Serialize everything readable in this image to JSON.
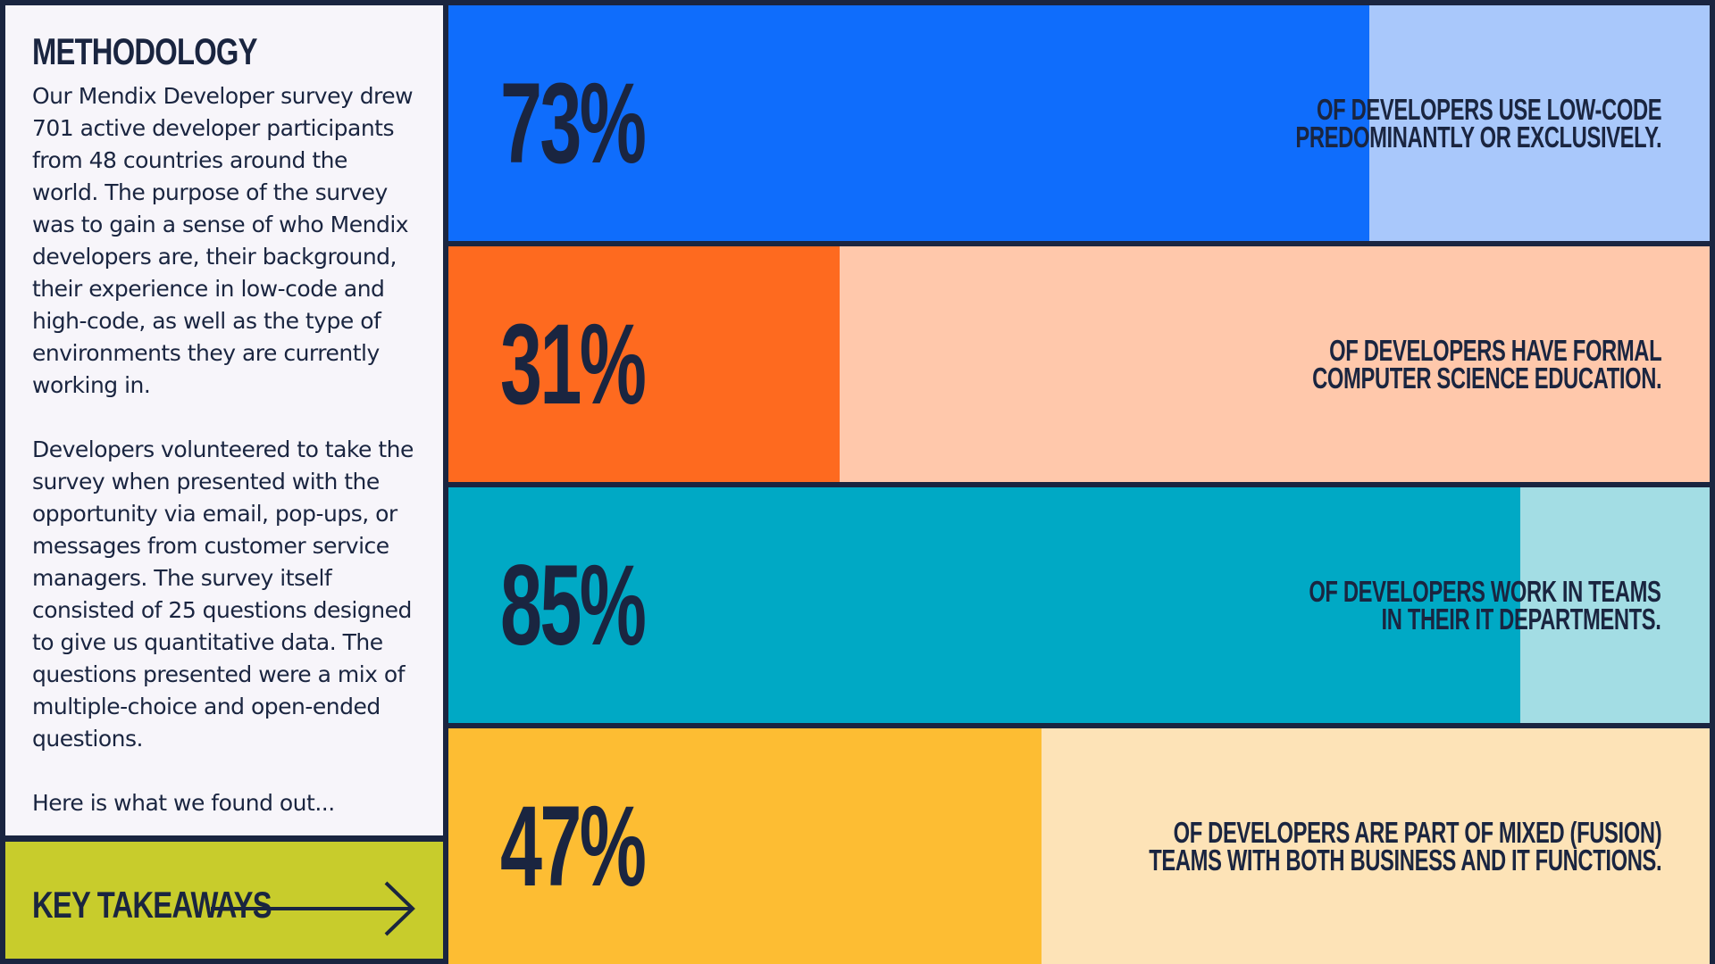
{
  "methodology": {
    "title": "METHODOLOGY",
    "paragraphs": [
      "Our Mendix Developer survey drew 701 active developer participants from 48 countries around the world. The purpose of the survey was to gain a sense of who Mendix developers are, their background, their experience in low-code and high-code, as well as the type of environments they are currently working in.",
      "Developers volunteered to take the survey when presented with the opportunity via email, pop-ups, or messages from customer service managers. The survey itself consisted of 25 questions designed to give us quantitative data. The questions presented were a mix of multiple-choice and open-ended questions.",
      "Here is what we found out..."
    ]
  },
  "takeaways": {
    "label": "KEY TAKEAWAYS",
    "icon": "arrow-right-icon"
  },
  "chart_data": {
    "type": "bar",
    "orientation": "horizontal",
    "ylim": [
      0,
      100
    ],
    "categories": [
      "OF DEVELOPERS USE LOW-CODE\nPREDOMINANTLY OR EXCLUSIVELY.",
      "OF DEVELOPERS HAVE FORMAL\nCOMPUTER SCIENCE EDUCATION.",
      "OF DEVELOPERS WORK IN TEAMS\nIN THEIR IT DEPARTMENTS.",
      "OF DEVELOPERS ARE PART OF MIXED (FUSION)\nTEAMS WITH BOTH BUSINESS AND IT FUNCTIONS."
    ],
    "values": [
      73,
      31,
      85,
      47
    ],
    "value_labels": [
      "73%",
      "31%",
      "85%",
      "47%"
    ],
    "colors": [
      {
        "fill": "#0f6dfc",
        "track": "#a9c8fb"
      },
      {
        "fill": "#fe6a1f",
        "track": "#ffc8ab"
      },
      {
        "fill": "#00a9c5",
        "track": "#a3dde4"
      },
      {
        "fill": "#fdbd33",
        "track": "#fde3b7"
      }
    ]
  }
}
